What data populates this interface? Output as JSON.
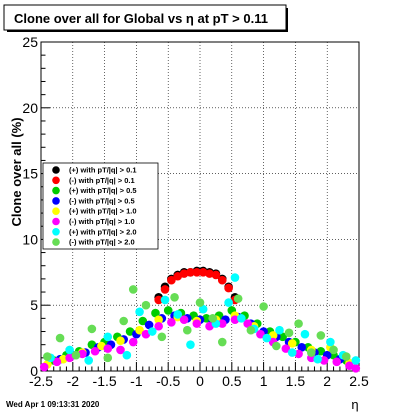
{
  "chart_data": {
    "type": "scatter",
    "title": "Clone  over all for Global vs   η at pT > 0.11",
    "ylabel": "Clone  over all (%)",
    "xlabel": "η",
    "xlim": [
      -2.5,
      2.5
    ],
    "ylim": [
      0,
      25
    ],
    "grid": true,
    "legend_position": "center-left",
    "x_ticks": [
      -2.5,
      -2,
      -1.5,
      -1,
      -0.5,
      0,
      0.5,
      1,
      1.5,
      2,
      2.5
    ],
    "x_tick_labels": [
      "-2.5",
      "-2",
      "-1.5",
      "-1",
      "-0.5",
      "0",
      "0.5",
      "1",
      "1.5",
      "2",
      "2.5"
    ],
    "y_ticks": [
      0,
      5,
      10,
      15,
      20,
      25
    ],
    "y_tick_labels": [
      "0",
      "5",
      "10",
      "15",
      "20",
      "25"
    ],
    "series": [
      {
        "name": "(+) with pT/|q| > 0.1",
        "color": "#000000",
        "points": [
          [
            -0.65,
            5.6
          ],
          [
            -0.55,
            6.4
          ],
          [
            -0.45,
            7.0
          ],
          [
            -0.35,
            7.3
          ],
          [
            -0.25,
            7.5
          ],
          [
            -0.15,
            7.5
          ],
          [
            -0.05,
            7.6
          ],
          [
            0.05,
            7.6
          ],
          [
            0.15,
            7.5
          ],
          [
            0.25,
            7.4
          ],
          [
            0.35,
            7.0
          ],
          [
            0.45,
            6.4
          ],
          [
            0.55,
            5.6
          ]
        ]
      },
      {
        "name": "(-) with pT/|q| > 0.1",
        "color": "#ff0000",
        "points": [
          [
            -0.65,
            5.4
          ],
          [
            -0.55,
            6.2
          ],
          [
            -0.45,
            6.9
          ],
          [
            -0.35,
            7.2
          ],
          [
            -0.25,
            7.4
          ],
          [
            -0.15,
            7.5
          ],
          [
            -0.05,
            7.5
          ],
          [
            0.05,
            7.5
          ],
          [
            0.15,
            7.4
          ],
          [
            0.25,
            7.3
          ],
          [
            0.35,
            6.9
          ],
          [
            0.45,
            6.3
          ],
          [
            0.55,
            5.4
          ]
        ]
      },
      {
        "name": "(+) with pT/|q| > 0.5",
        "color": "#00cc00",
        "points": [
          [
            -2.3,
            0.8
          ],
          [
            -2.1,
            1.2
          ],
          [
            -1.9,
            1.5
          ],
          [
            -1.7,
            2.0
          ],
          [
            -1.5,
            2.2
          ],
          [
            -1.3,
            2.6
          ],
          [
            -1.1,
            3.0
          ],
          [
            -0.9,
            3.8
          ],
          [
            -0.7,
            4.4
          ],
          [
            -0.5,
            4.6
          ],
          [
            -0.3,
            4.4
          ],
          [
            -0.1,
            4.2
          ],
          [
            0.1,
            4.0
          ],
          [
            0.3,
            4.2
          ],
          [
            0.5,
            4.6
          ],
          [
            0.7,
            4.2
          ],
          [
            0.9,
            3.6
          ],
          [
            1.1,
            3.0
          ],
          [
            1.3,
            2.6
          ],
          [
            1.5,
            2.2
          ],
          [
            1.7,
            1.8
          ],
          [
            1.9,
            1.5
          ],
          [
            2.1,
            1.2
          ],
          [
            2.3,
            0.8
          ]
        ]
      },
      {
        "name": "(-) with pT/|q| > 0.5",
        "color": "#0000ff",
        "points": [
          [
            -2.2,
            0.9
          ],
          [
            -2.0,
            1.2
          ],
          [
            -1.8,
            1.4
          ],
          [
            -1.6,
            1.8
          ],
          [
            -1.4,
            2.0
          ],
          [
            -1.2,
            2.4
          ],
          [
            -1.0,
            2.8
          ],
          [
            -0.8,
            3.5
          ],
          [
            -0.6,
            4.0
          ],
          [
            -0.4,
            4.2
          ],
          [
            -0.2,
            4.0
          ],
          [
            0.0,
            3.9
          ],
          [
            0.2,
            3.8
          ],
          [
            0.4,
            3.9
          ],
          [
            0.6,
            4.1
          ],
          [
            0.8,
            3.6
          ],
          [
            1.0,
            3.0
          ],
          [
            1.2,
            2.6
          ],
          [
            1.4,
            2.2
          ],
          [
            1.6,
            1.8
          ],
          [
            1.8,
            1.4
          ],
          [
            2.0,
            1.2
          ],
          [
            2.2,
            0.9
          ]
        ]
      },
      {
        "name": "(+) with pT/|q| > 1.0",
        "color": "#ffff00",
        "points": [
          [
            -2.4,
            0.5
          ],
          [
            -2.15,
            0.9
          ],
          [
            -1.85,
            1.4
          ],
          [
            -1.55,
            1.9
          ],
          [
            -1.25,
            2.3
          ],
          [
            -0.95,
            3.1
          ],
          [
            -0.65,
            3.9
          ],
          [
            -0.35,
            4.1
          ],
          [
            -0.05,
            3.8
          ],
          [
            0.25,
            3.9
          ],
          [
            0.55,
            4.2
          ],
          [
            0.85,
            3.4
          ],
          [
            1.15,
            2.7
          ],
          [
            1.45,
            2.1
          ],
          [
            1.75,
            1.6
          ],
          [
            2.05,
            1.8
          ],
          [
            2.35,
            0.6
          ]
        ]
      },
      {
        "name": "(-) with pT/|q| > 1.0",
        "color": "#ff00ff",
        "points": [
          [
            -2.45,
            0.3
          ],
          [
            -2.25,
            0.7
          ],
          [
            -2.05,
            1.0
          ],
          [
            -1.85,
            1.3
          ],
          [
            -1.65,
            1.5
          ],
          [
            -1.45,
            1.7
          ],
          [
            -1.25,
            1.6
          ],
          [
            -1.05,
            2.2
          ],
          [
            -0.85,
            2.8
          ],
          [
            -0.65,
            3.4
          ],
          [
            -0.45,
            3.7
          ],
          [
            -0.25,
            3.9
          ],
          [
            -0.05,
            3.6
          ],
          [
            0.15,
            3.4
          ],
          [
            0.35,
            3.6
          ],
          [
            0.55,
            3.9
          ],
          [
            0.75,
            3.6
          ],
          [
            0.95,
            2.8
          ],
          [
            1.15,
            2.2
          ],
          [
            1.35,
            1.7
          ],
          [
            1.55,
            1.3
          ],
          [
            1.75,
            1.0
          ],
          [
            1.95,
            0.8
          ],
          [
            2.15,
            0.7
          ],
          [
            2.35,
            0.4
          ],
          [
            2.45,
            0.2
          ]
        ]
      },
      {
        "name": "(+) with pT/|q| > 2.0",
        "color": "#00ffff",
        "points": [
          [
            -2.35,
            1.0
          ],
          [
            -2.05,
            1.6
          ],
          [
            -1.75,
            0.8
          ],
          [
            -1.45,
            2.6
          ],
          [
            -1.15,
            1.2
          ],
          [
            -0.95,
            4.5
          ],
          [
            -0.75,
            3.0
          ],
          [
            -0.55,
            5.4
          ],
          [
            -0.35,
            4.3
          ],
          [
            -0.15,
            2.0
          ],
          [
            0.05,
            4.7
          ],
          [
            0.25,
            3.6
          ],
          [
            0.45,
            5.2
          ],
          [
            0.55,
            7.1
          ],
          [
            0.65,
            4.0
          ],
          [
            0.85,
            3.2
          ],
          [
            1.05,
            2.5
          ],
          [
            1.25,
            3.1
          ],
          [
            1.45,
            1.4
          ],
          [
            1.65,
            2.8
          ],
          [
            1.85,
            0.9
          ],
          [
            2.05,
            2.2
          ],
          [
            2.25,
            1.2
          ],
          [
            2.45,
            0.8
          ]
        ]
      },
      {
        "name": "(-) with pT/|q| > 2.0",
        "color": "#66dd55",
        "points": [
          [
            -2.4,
            1.1
          ],
          [
            -2.2,
            2.5
          ],
          [
            -1.95,
            1.2
          ],
          [
            -1.7,
            3.2
          ],
          [
            -1.45,
            1.0
          ],
          [
            -1.2,
            3.8
          ],
          [
            -1.05,
            6.2
          ],
          [
            -0.85,
            5.0
          ],
          [
            -0.6,
            2.6
          ],
          [
            -0.4,
            5.6
          ],
          [
            -0.2,
            3.1
          ],
          [
            0.0,
            5.2
          ],
          [
            0.2,
            4.0
          ],
          [
            0.35,
            2.2
          ],
          [
            0.6,
            5.5
          ],
          [
            0.8,
            3.1
          ],
          [
            1.0,
            4.9
          ],
          [
            1.2,
            1.9
          ],
          [
            1.4,
            2.9
          ],
          [
            1.55,
            3.6
          ],
          [
            1.75,
            1.4
          ],
          [
            1.9,
            2.7
          ],
          [
            2.1,
            1.6
          ],
          [
            2.3,
            1.1
          ]
        ]
      }
    ]
  },
  "footer": {
    "timestamp": "Wed Apr  1 09:13:31 2020"
  }
}
